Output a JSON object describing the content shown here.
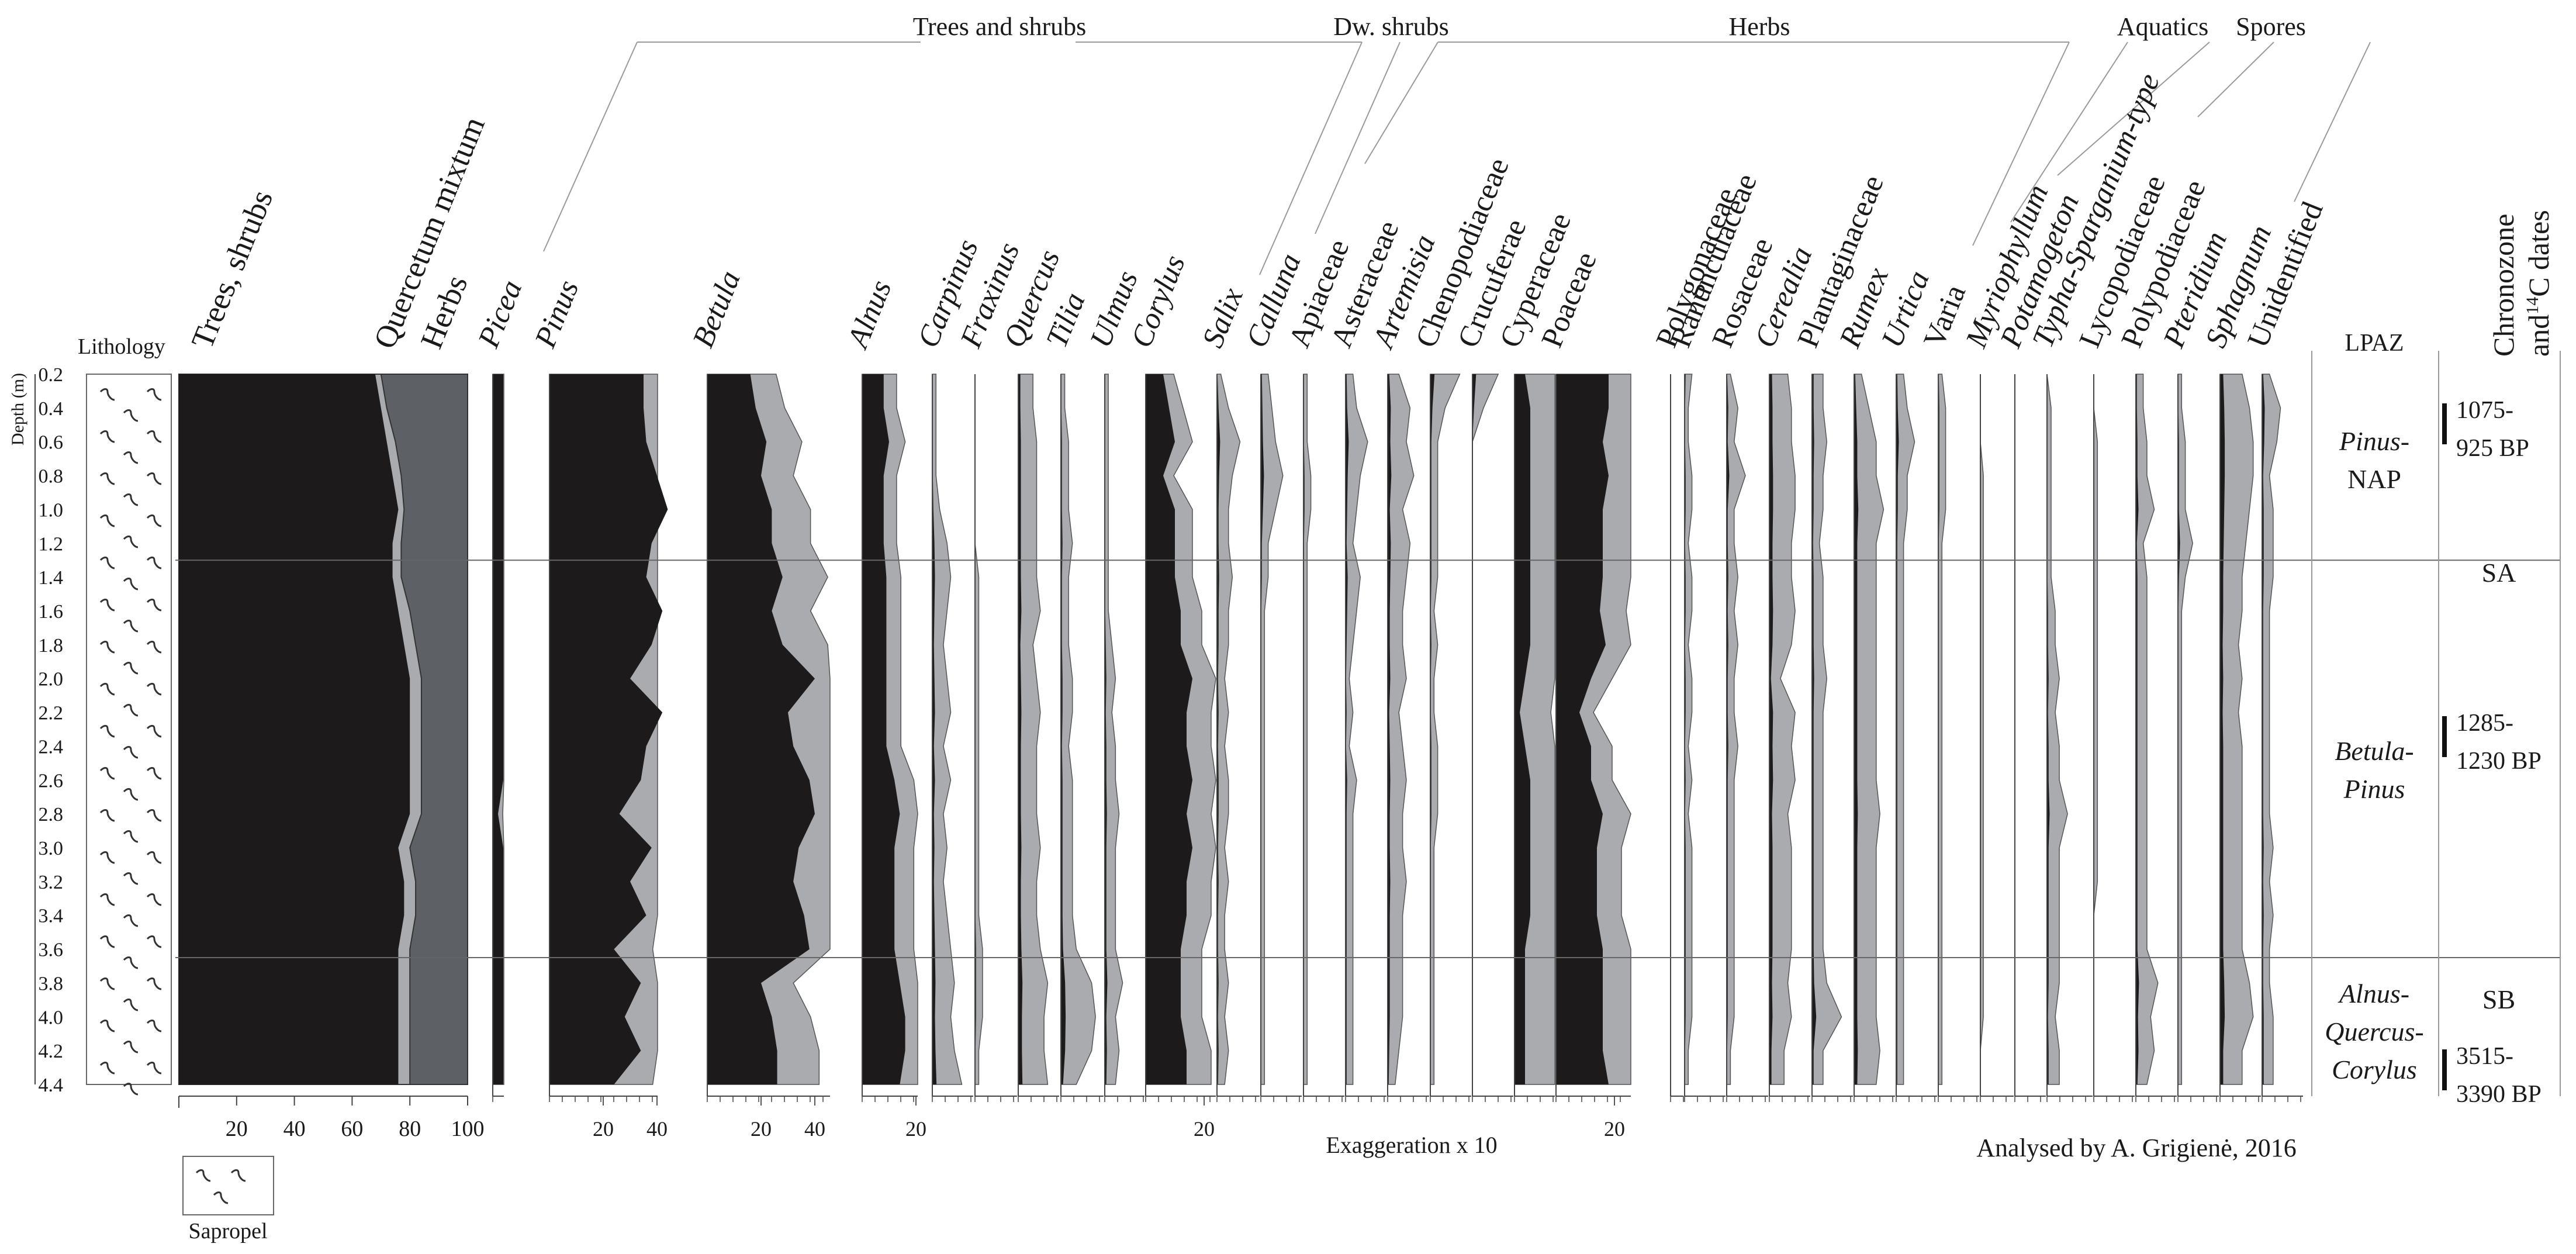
{
  "chart_data": {
    "type": "area",
    "depth_axis": {
      "label": "Depth (m)",
      "ticks": [
        "0.2",
        "0.4",
        "0.6",
        "0.8",
        "1.0",
        "1.2",
        "1.4",
        "1.6",
        "1.8",
        "2.0",
        "2.2",
        "2.4",
        "2.6",
        "2.8",
        "3.0",
        "3.2",
        "3.4",
        "3.6",
        "3.8",
        "4.0",
        "4.2",
        "4.4"
      ],
      "range": [
        0.2,
        4.4
      ]
    },
    "lithology": {
      "label": "Lithology",
      "legend_label": "Sapropel"
    },
    "groups": [
      "Trees and shrubs",
      "Dw. shrubs",
      "Herbs",
      "Aquatics",
      "Spores"
    ],
    "summary": {
      "labels": [
        "Trees, shrubs",
        "Quercetum mixtum",
        "Herbs"
      ],
      "ticks": [
        "20",
        "40",
        "60",
        "80",
        "100"
      ],
      "depths": [
        0.2,
        0.4,
        0.6,
        0.8,
        1.0,
        1.2,
        1.4,
        1.6,
        1.8,
        2.0,
        2.2,
        2.4,
        2.6,
        2.8,
        3.0,
        3.2,
        3.4,
        3.6,
        3.8,
        4.0,
        4.2,
        4.4
      ],
      "trees_shrubs": [
        68,
        70,
        72,
        74,
        76,
        74,
        74,
        76,
        78,
        80,
        80,
        80,
        80,
        80,
        76,
        78,
        78,
        76,
        76,
        76,
        76,
        76
      ],
      "quercetum": [
        70,
        72,
        75,
        77,
        78,
        77,
        77,
        80,
        82,
        84,
        84,
        84,
        84,
        84,
        80,
        82,
        82,
        80,
        80,
        80,
        80,
        80
      ],
      "herbs": [
        100,
        100,
        100,
        100,
        100,
        100,
        100,
        100,
        100,
        100,
        100,
        100,
        100,
        100,
        100,
        100,
        100,
        100,
        100,
        100,
        100,
        100
      ]
    },
    "taxa": [
      {
        "name": "Picea",
        "italic": true,
        "group": "Trees and shrubs",
        "values": [
          2,
          2,
          2,
          2,
          2,
          2,
          2,
          2,
          2,
          2,
          2,
          2,
          2,
          1,
          2,
          2,
          2,
          2,
          2,
          2,
          2,
          2
        ],
        "ticks": []
      },
      {
        "name": "Pinus",
        "italic": true,
        "group": "Trees and shrubs",
        "values": [
          35,
          35,
          36,
          40,
          44,
          38,
          36,
          42,
          38,
          30,
          42,
          36,
          34,
          26,
          38,
          30,
          36,
          24,
          34,
          28,
          34,
          24
        ],
        "ticks": [
          "20",
          "40"
        ]
      },
      {
        "name": "Betula",
        "italic": true,
        "group": "Trees and shrubs",
        "values": [
          16,
          18,
          22,
          20,
          24,
          24,
          28,
          24,
          28,
          40,
          30,
          32,
          38,
          40,
          34,
          32,
          36,
          38,
          20,
          24,
          26,
          26
        ],
        "ticks": [
          "20",
          "40"
        ]
      },
      {
        "name": "Alnus",
        "italic": true,
        "group": "Trees and shrubs",
        "values": [
          8,
          8,
          10,
          8,
          8,
          8,
          9,
          9,
          9,
          9,
          9,
          9,
          12,
          14,
          12,
          12,
          12,
          12,
          14,
          16,
          16,
          14
        ],
        "ticks": [
          "20"
        ]
      },
      {
        "name": "Carpinus",
        "italic": true,
        "group": "Trees and shrubs",
        "values": [
          0.1,
          0.1,
          0.1,
          0.1,
          0.2,
          0.4,
          0.5,
          0.4,
          0.3,
          0.4,
          0.5,
          0.3,
          0.5,
          0.3,
          0.4,
          0.3,
          0.4,
          0.5,
          0.6,
          0.5,
          0.6,
          0.8
        ],
        "ticks": []
      },
      {
        "name": "Fraxinus",
        "italic": true,
        "group": "Trees and shrubs",
        "values": [
          0,
          0,
          0,
          0,
          0,
          0,
          0.1,
          0.1,
          0.1,
          0.1,
          0.1,
          0.1,
          0.1,
          0.1,
          0.1,
          0.1,
          0.1,
          0.2,
          0.2,
          0.2,
          0.1,
          0.1
        ],
        "ticks": []
      },
      {
        "name": "Quercus",
        "italic": true,
        "group": "Trees and shrubs",
        "values": [
          0.4,
          0.4,
          0.5,
          0.5,
          0.5,
          0.5,
          0.5,
          0.6,
          0.4,
          0.5,
          0.6,
          0.5,
          0.5,
          0.5,
          0.6,
          0.5,
          0.5,
          0.6,
          0.8,
          0.7,
          0.7,
          0.8
        ],
        "ticks": []
      },
      {
        "name": "Tilia",
        "italic": true,
        "group": "Trees and shrubs",
        "values": [
          0.1,
          0.1,
          0.2,
          0.2,
          0.2,
          0.3,
          0.2,
          0.2,
          0.2,
          0.3,
          0.3,
          0.2,
          0.3,
          0.3,
          0.3,
          0.3,
          0.3,
          0.4,
          0.8,
          0.9,
          0.8,
          0.4
        ],
        "ticks": []
      },
      {
        "name": "Ulmus",
        "italic": true,
        "group": "Trees and shrubs",
        "values": [
          0.1,
          0.1,
          0.1,
          0.1,
          0.1,
          0.1,
          0.1,
          0.1,
          0.2,
          0.3,
          0.2,
          0.3,
          0.3,
          0.4,
          0.3,
          0.3,
          0.3,
          0.3,
          0.5,
          0.3,
          0.4,
          0.3
        ],
        "ticks": []
      },
      {
        "name": "Corylus",
        "italic": true,
        "group": "Trees and shrubs",
        "values": [
          6,
          8,
          10,
          6,
          10,
          10,
          10,
          12,
          12,
          16,
          14,
          14,
          16,
          14,
          16,
          14,
          14,
          12,
          12,
          12,
          14,
          14
        ],
        "ticks": [
          "20"
        ]
      },
      {
        "name": "Salix",
        "italic": true,
        "group": "Trees and shrubs",
        "values": [
          0.1,
          0.3,
          0.6,
          0.4,
          0.3,
          0.3,
          0.4,
          0.3,
          0.3,
          0.2,
          0.3,
          0.2,
          0.3,
          0.3,
          0.2,
          0.3,
          0.2,
          0.2,
          0.3,
          0.2,
          0.3,
          0.2
        ],
        "ticks": []
      },
      {
        "name": "Calluna",
        "italic": true,
        "group": "Dw. shrubs",
        "values": [
          0.2,
          0.3,
          0.4,
          0.6,
          0.4,
          0.2,
          0.2,
          0.1,
          0.1,
          0.1,
          0.1,
          0.1,
          0.1,
          0.1,
          0.1,
          0.1,
          0.1,
          0.1,
          0.1,
          0.1,
          0.1,
          0.1
        ],
        "ticks": []
      },
      {
        "name": "Apiaceae",
        "italic": false,
        "group": "Herbs",
        "values": [
          0.1,
          0.1,
          0.1,
          0.2,
          0.2,
          0.1,
          0.1,
          0.1,
          0.1,
          0.1,
          0.1,
          0.1,
          0.1,
          0.1,
          0.1,
          0.1,
          0.1,
          0.1,
          0.1,
          0.1,
          0.1,
          0.1
        ],
        "ticks": []
      },
      {
        "name": "Asteraceae",
        "italic": false,
        "group": "Herbs",
        "values": [
          0.2,
          0.3,
          0.6,
          0.4,
          0.3,
          0.2,
          0.4,
          0.3,
          0.2,
          0.1,
          0.2,
          0.1,
          0.3,
          0.2,
          0.2,
          0.2,
          0.2,
          0.2,
          0.2,
          0.2,
          0.2,
          0.2
        ],
        "ticks": []
      },
      {
        "name": "Artemisia",
        "italic": true,
        "group": "Herbs",
        "values": [
          0.3,
          0.6,
          0.5,
          0.7,
          0.4,
          0.6,
          0.5,
          0.4,
          0.4,
          0.5,
          0.3,
          0.4,
          0.5,
          0.4,
          0.4,
          0.5,
          0.4,
          0.4,
          0.4,
          0.4,
          0.3,
          0.2
        ],
        "ticks": []
      },
      {
        "name": "Chenopodiaceae",
        "italic": false,
        "group": "Herbs",
        "values": [
          0.8,
          0.4,
          0.2,
          0.2,
          0.2,
          0.2,
          0.2,
          0.1,
          0.2,
          0.1,
          0.1,
          0.2,
          0.2,
          0.2,
          0.1,
          0.1,
          0.1,
          0.1,
          0.1,
          0.1,
          0.1,
          0.1
        ],
        "ticks": []
      },
      {
        "name": "Crucuferae",
        "italic": false,
        "group": "Herbs",
        "values": [
          0.7,
          0.3,
          0,
          0,
          0,
          0,
          0,
          0,
          0,
          0,
          0,
          0,
          0,
          0,
          0,
          0,
          0,
          0,
          0,
          0,
          0,
          0
        ],
        "ticks": []
      },
      {
        "name": "Cyperaceae",
        "italic": false,
        "group": "Herbs",
        "values": [
          2,
          3,
          3,
          3,
          3,
          3,
          3,
          3,
          3,
          2,
          1,
          2,
          3,
          3,
          3,
          3,
          3,
          2,
          2,
          2,
          2,
          2
        ],
        "ticks": []
      },
      {
        "name": "Poaceae",
        "italic": false,
        "group": "Herbs",
        "values": [
          18,
          18,
          16,
          18,
          16,
          16,
          16,
          15,
          17,
          12,
          8,
          12,
          12,
          16,
          14,
          14,
          14,
          16,
          16,
          16,
          16,
          18
        ],
        "ticks": [
          "20"
        ]
      },
      {
        "name": "Polygonaceae",
        "italic": false,
        "group": "Herbs",
        "values": [
          0,
          0,
          0,
          0,
          0,
          0,
          0,
          0,
          0,
          0,
          0,
          0,
          0,
          0,
          0,
          0,
          0,
          0,
          0,
          0,
          0,
          0
        ],
        "ticks": []
      },
      {
        "name": "Ranunculaceae",
        "italic": false,
        "group": "Herbs",
        "values": [
          0.2,
          0.1,
          0.1,
          0.2,
          0.2,
          0.1,
          0.2,
          0.2,
          0.1,
          0.2,
          0.2,
          0.1,
          0.2,
          0.1,
          0.2,
          0.2,
          0.2,
          0.2,
          0.2,
          0.2,
          0.1,
          0.1
        ],
        "ticks": []
      },
      {
        "name": "Rosaceae",
        "italic": false,
        "group": "Herbs",
        "values": [
          0.1,
          0.3,
          0.2,
          0.5,
          0.2,
          0.2,
          0.3,
          0.2,
          0.3,
          0.2,
          0.2,
          0.3,
          0.2,
          0.2,
          0.2,
          0.2,
          0.2,
          0.2,
          0.2,
          0.2,
          0.1,
          0.1
        ],
        "ticks": []
      },
      {
        "name": "Cerealia",
        "italic": true,
        "group": "Herbs",
        "values": [
          0.5,
          0.6,
          0.6,
          0.7,
          0.7,
          0.6,
          0.6,
          0.7,
          0.6,
          0.3,
          0.7,
          0.6,
          0.7,
          0.5,
          0.6,
          0.6,
          0.6,
          0.6,
          0.5,
          0.6,
          0.4,
          0.4
        ],
        "ticks": []
      },
      {
        "name": "Plantaginaceae",
        "italic": false,
        "group": "Herbs",
        "values": [
          0.3,
          0.3,
          0.4,
          0.3,
          0.3,
          0.2,
          0.3,
          0.3,
          0.3,
          0.4,
          0.3,
          0.3,
          0.3,
          0.3,
          0.3,
          0.3,
          0.3,
          0.3,
          0.4,
          0.8,
          0.3,
          0.3
        ],
        "ticks": []
      },
      {
        "name": "Rumex",
        "italic": true,
        "group": "Herbs",
        "values": [
          0.2,
          0.4,
          0.6,
          0.6,
          0.8,
          0.6,
          0.6,
          0.6,
          0.6,
          0.6,
          0.6,
          0.6,
          0.6,
          0.7,
          0.6,
          0.6,
          0.6,
          0.6,
          0.6,
          0.6,
          0.7,
          0.6
        ],
        "ticks": []
      },
      {
        "name": "Urtica",
        "italic": true,
        "group": "Herbs",
        "values": [
          0.2,
          0.3,
          0.5,
          0.3,
          0.3,
          0.2,
          0.2,
          0.2,
          0.2,
          0.2,
          0.2,
          0.2,
          0.2,
          0.2,
          0.2,
          0.2,
          0.2,
          0.2,
          0.2,
          0.2,
          0.2,
          0.2
        ],
        "ticks": []
      },
      {
        "name": "Varia",
        "italic": false,
        "group": "Herbs",
        "values": [
          0.1,
          0.2,
          0.2,
          0.2,
          0.2,
          0.1,
          0.1,
          0.1,
          0.1,
          0.1,
          0.1,
          0.1,
          0.1,
          0.1,
          0.1,
          0.1,
          0.1,
          0.1,
          0.1,
          0.1,
          0.1,
          0.1
        ],
        "ticks": []
      },
      {
        "name": "Myriophyllum",
        "italic": true,
        "group": "Aquatics",
        "values": [
          0,
          0,
          0,
          0.1,
          0.1,
          0.1,
          0.1,
          0.1,
          0.1,
          0.1,
          0.1,
          0.1,
          0.1,
          0.1,
          0.1,
          0.1,
          0.1,
          0.1,
          0.1,
          0.1,
          0,
          0
        ],
        "ticks": []
      },
      {
        "name": "Potamogeton",
        "italic": true,
        "group": "Aquatics",
        "values": [
          0,
          0,
          0,
          0,
          0,
          0,
          0,
          0,
          0,
          0,
          0,
          0,
          0,
          0,
          0,
          0,
          0,
          0,
          0,
          0,
          0,
          0
        ],
        "ticks": []
      },
      {
        "name": "Typha-Sparganium-type",
        "italic": true,
        "group": "Aquatics",
        "values": [
          0,
          0.1,
          0.1,
          0.1,
          0.1,
          0.1,
          0.1,
          0.2,
          0.2,
          0.3,
          0.2,
          0.3,
          0.3,
          0.5,
          0.3,
          0.3,
          0.3,
          0.3,
          0.3,
          0.2,
          0.3,
          0.3
        ],
        "ticks": []
      },
      {
        "name": "Lycopodiaceae",
        "italic": false,
        "group": "Spores",
        "values": [
          0,
          0,
          0.1,
          0.1,
          0.1,
          0.1,
          0.1,
          0.1,
          0.1,
          0.1,
          0.1,
          0.1,
          0.1,
          0.1,
          0.1,
          0.1,
          0,
          0,
          0,
          0,
          0,
          0
        ],
        "ticks": []
      },
      {
        "name": "Polypodiaceae",
        "italic": false,
        "group": "Spores",
        "values": [
          0.2,
          0.2,
          0.3,
          0.3,
          0.5,
          0.2,
          0.3,
          0.3,
          0.3,
          0.3,
          0.3,
          0.3,
          0.3,
          0.3,
          0.3,
          0.3,
          0.3,
          0.3,
          0.6,
          0.4,
          0.5,
          0.3
        ],
        "ticks": []
      },
      {
        "name": "Pteridium",
        "italic": true,
        "group": "Spores",
        "values": [
          0.1,
          0.1,
          0.2,
          0.2,
          0.2,
          0.4,
          0.2,
          0.1,
          0.1,
          0.1,
          0.1,
          0.1,
          0.1,
          0.1,
          0.1,
          0.1,
          0.1,
          0.1,
          0.1,
          0.1,
          0.1,
          0.1
        ],
        "ticks": []
      },
      {
        "name": "Sphagnum",
        "italic": true,
        "group": "Spores",
        "values": [
          0.6,
          0.8,
          0.9,
          0.9,
          0.8,
          0.7,
          0.6,
          0.6,
          0.5,
          0.6,
          0.5,
          0.6,
          0.6,
          0.6,
          0.6,
          0.6,
          0.6,
          0.6,
          0.8,
          0.9,
          0.6,
          0.6
        ],
        "ticks": []
      },
      {
        "name": "Unidentified",
        "italic": false,
        "group": "Spores",
        "values": [
          0.2,
          0.5,
          0.4,
          0.2,
          0.3,
          0.3,
          0.3,
          0.2,
          0.2,
          0.2,
          0.2,
          0.2,
          0.2,
          0.2,
          0.3,
          0.2,
          0.3,
          0.2,
          0.2,
          0.3,
          0.3,
          0.3
        ],
        "ticks": []
      }
    ],
    "lpaz": {
      "header": "LPAZ",
      "zones": [
        {
          "line1": "Pinus-",
          "line2": "NAP"
        },
        {
          "line1": "Betula-",
          "line2": "Pinus"
        },
        {
          "line1": "Alnus-",
          "line2": "Quercus-",
          "line3": "Corylus"
        }
      ],
      "boundaries_depth_m": [
        1.3,
        3.65
      ]
    },
    "chronozone": {
      "header_line1": "Chronozone",
      "header_line2_pre": "and",
      "header_line2_sup": "14",
      "header_line2_post": "C dates",
      "zones": [
        "SA",
        "SB"
      ],
      "dates": [
        {
          "line1": "1075-",
          "line2": "925 BP"
        },
        {
          "line1": "1285-",
          "line2": "1230 BP"
        },
        {
          "line1": "3515-",
          "line2": "3390 BP"
        }
      ]
    },
    "annotations": {
      "exaggeration": "Exaggeration x 10",
      "author": "Analysed by A. Grigienė, 2016"
    }
  }
}
